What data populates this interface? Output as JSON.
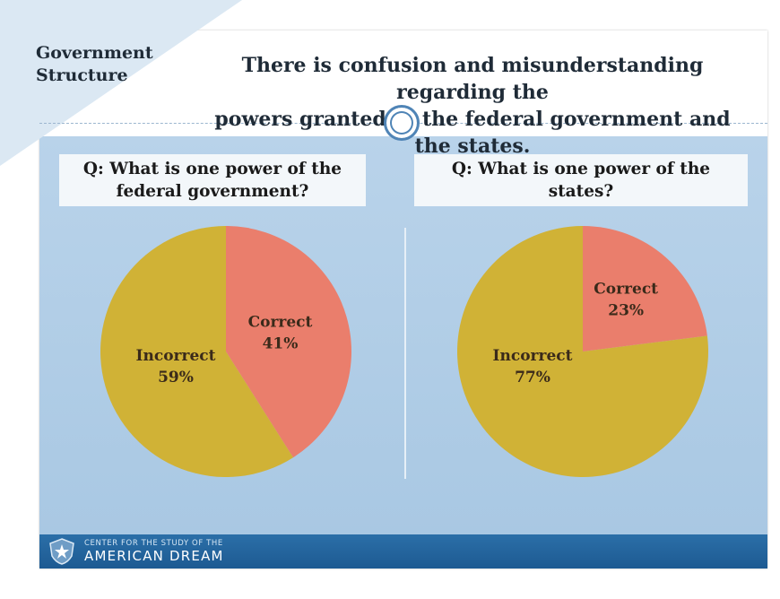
{
  "header": {
    "section_label_line1": "Government",
    "section_label_line2": "Structure",
    "title_line1": "There is confusion and misunderstanding regarding the",
    "title_line2": "powers granted to the federal government and the states."
  },
  "colors": {
    "correct": "#ea7e6c",
    "incorrect": "#d0b236",
    "background": "#b9d3ea",
    "footer": "#2b6fa8"
  },
  "footer": {
    "line1": "CENTER FOR THE STUDY OF THE",
    "line2": "AMERICAN DREAM",
    "logo_icon": "star-shield-icon"
  },
  "chart_data": [
    {
      "type": "pie",
      "title_line1": "Q: What is one power of the",
      "title_line2": "federal government?",
      "slices": [
        {
          "label": "Correct",
          "value": 41,
          "value_label": "41%"
        },
        {
          "label": "Incorrect",
          "value": 59,
          "value_label": "59%"
        }
      ]
    },
    {
      "type": "pie",
      "title_line1": "Q: What is one power of the",
      "title_line2": "states?",
      "slices": [
        {
          "label": "Correct",
          "value": 23,
          "value_label": "23%"
        },
        {
          "label": "Incorrect",
          "value": 77,
          "value_label": "77%"
        }
      ]
    }
  ]
}
